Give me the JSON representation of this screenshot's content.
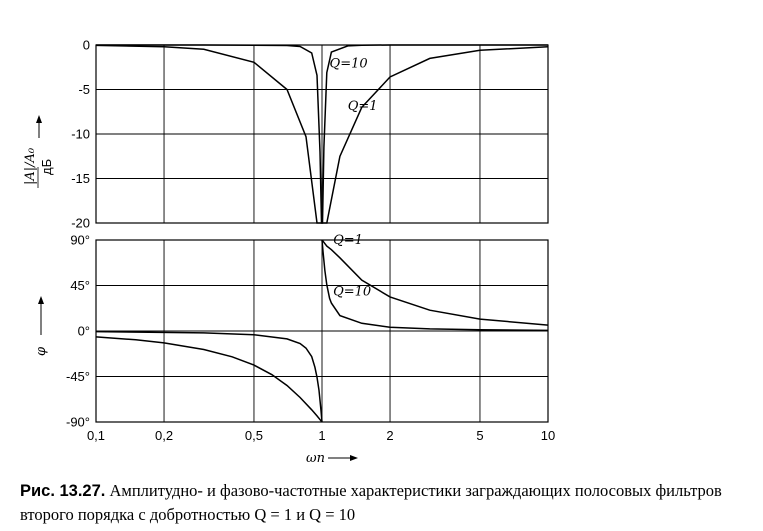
{
  "chart_data": [
    {
      "type": "line",
      "x_scale": "log",
      "xlim": [
        0.1,
        10
      ],
      "ylim": [
        -20,
        0
      ],
      "grid": true,
      "x_ticks": [
        {
          "value": 0.1,
          "label": "0,1"
        },
        {
          "value": 0.2,
          "label": "0,2"
        },
        {
          "value": 0.5,
          "label": "0,5"
        },
        {
          "value": 1,
          "label": "1"
        },
        {
          "value": 2,
          "label": "2"
        },
        {
          "value": 5,
          "label": "5"
        },
        {
          "value": 10,
          "label": "10"
        }
      ],
      "y_ticks": [
        {
          "value": 0,
          "label": "0"
        },
        {
          "value": -5,
          "label": "-5"
        },
        {
          "value": -10,
          "label": "-10"
        },
        {
          "value": -15,
          "label": "-15"
        },
        {
          "value": -20,
          "label": "-20"
        }
      ],
      "ylabel": "|A|/A₀",
      "ylabel_unit": "дБ",
      "series": [
        {
          "name": "Q=1",
          "x": [
            0.1,
            0.2,
            0.3,
            0.5,
            0.7,
            0.85,
            0.95,
            0.98,
            0.995,
            1.005,
            1.02,
            1.05,
            1.2,
            1.5,
            2,
            3,
            5,
            10
          ],
          "y": [
            -0.04,
            -0.19,
            -0.48,
            -1.94,
            -5.0,
            -10.3,
            -20,
            -20,
            -20,
            -20,
            -20,
            -20,
            -12.5,
            -7.0,
            -3.6,
            -1.5,
            -0.6,
            -0.2
          ]
        },
        {
          "name": "Q=10",
          "x": [
            0.1,
            0.3,
            0.5,
            0.7,
            0.8,
            0.9,
            0.95,
            0.98,
            0.995,
            1.005,
            1.02,
            1.05,
            1.1,
            1.3,
            1.5,
            2,
            5,
            10
          ],
          "y": [
            0,
            -0.005,
            -0.02,
            -0.06,
            -0.17,
            -0.9,
            -3.4,
            -12.0,
            -20,
            -20,
            -11.5,
            -3.1,
            -0.8,
            -0.1,
            -0.02,
            0,
            0,
            0
          ]
        }
      ],
      "annotations": [
        {
          "text": "Q=10",
          "x": 1.08,
          "y": -2.5
        },
        {
          "text": "Q=1",
          "x": 1.3,
          "y": -7.3
        }
      ]
    },
    {
      "type": "line",
      "x_scale": "log",
      "xlim": [
        0.1,
        10
      ],
      "ylim": [
        -90,
        90
      ],
      "grid": true,
      "x_ticks": [
        {
          "value": 0.1,
          "label": "0,1"
        },
        {
          "value": 0.2,
          "label": "0,2"
        },
        {
          "value": 0.5,
          "label": "0,5"
        },
        {
          "value": 1,
          "label": "1"
        },
        {
          "value": 2,
          "label": "2"
        },
        {
          "value": 5,
          "label": "5"
        },
        {
          "value": 10,
          "label": "10"
        }
      ],
      "y_ticks": [
        {
          "value": 90,
          "label": "90°"
        },
        {
          "value": 45,
          "label": "45°"
        },
        {
          "value": 0,
          "label": "0°"
        },
        {
          "value": -45,
          "label": "-45°"
        },
        {
          "value": -90,
          "label": "-90°"
        }
      ],
      "ylabel": "φ",
      "xlabel": "ωn",
      "series": [
        {
          "name": "Q=1",
          "x": [
            0.1,
            0.15,
            0.2,
            0.3,
            0.4,
            0.5,
            0.6,
            0.7,
            0.8,
            0.9,
            0.95,
            0.99,
            0.9999,
            1.0001,
            1.01,
            1.05,
            1.1,
            1.2,
            1.5,
            2,
            3,
            5,
            10
          ],
          "y": [
            -5.8,
            -8.7,
            -11.8,
            -18.3,
            -25.5,
            -33.7,
            -43.2,
            -53.9,
            -65.8,
            -77.9,
            -84.0,
            -88.8,
            -90,
            90,
            88.8,
            84.0,
            80.4,
            72.4,
            50.2,
            33.7,
            20.6,
            11.8,
            5.8
          ]
        },
        {
          "name": "Q=10",
          "x": [
            0.1,
            0.3,
            0.5,
            0.7,
            0.8,
            0.85,
            0.9,
            0.93,
            0.95,
            0.97,
            0.99,
            0.9999,
            1.0001,
            1.01,
            1.03,
            1.05,
            1.08,
            1.1,
            1.2,
            1.5,
            2,
            3,
            5,
            10
          ],
          "y": [
            -0.58,
            -1.9,
            -3.8,
            -7.8,
            -12.4,
            -16.9,
            -25.3,
            -35.8,
            -45.7,
            -58.6,
            -78.6,
            -90,
            90,
            78.6,
            59.5,
            45.7,
            32.2,
            27.6,
            15.2,
            7.6,
            3.8,
            2.1,
            1.2,
            0.58
          ]
        }
      ],
      "annotations": [
        {
          "text": "Q=1",
          "x": 1.12,
          "y": 86
        },
        {
          "text": "Q=10",
          "x": 1.12,
          "y": 35
        }
      ]
    }
  ],
  "caption": {
    "label": "Рис. 13.27.",
    "text": " Амплитудно- и фазово-частотные характеристики заграждающих полосовых фильтров второго порядка с добротностью Q = 1 и Q = 10"
  }
}
